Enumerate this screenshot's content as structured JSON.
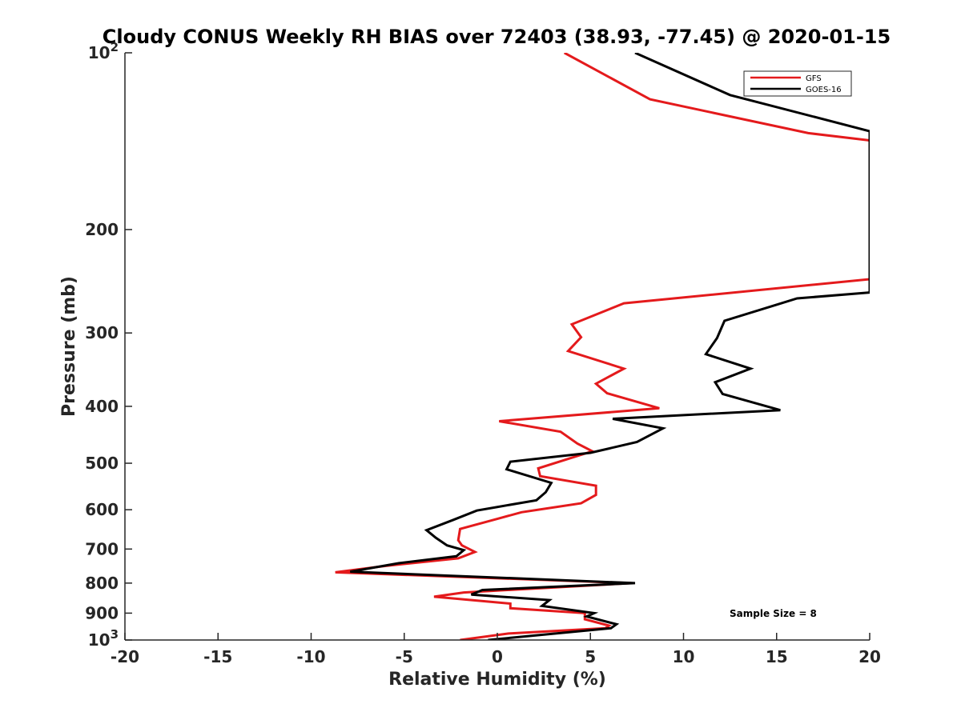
{
  "chart_data": {
    "type": "line",
    "title": "Cloudy CONUS Weekly RH BIAS over 72403 (38.93, -77.45) @ 2020-01-15",
    "xlabel": "Relative Humidity (%)",
    "ylabel": "Pressure (mb)",
    "xlim": [
      -20,
      20
    ],
    "ylim": [
      100,
      1000
    ],
    "y_scale": "log",
    "y_reversed": true,
    "grid": false,
    "legend_position": "top-right",
    "x_ticks": [
      "-20",
      "-15",
      "-10",
      "-5",
      "0",
      "5",
      "10",
      "15",
      "20"
    ],
    "y_ticks": [
      {
        "value": 100,
        "base": "10",
        "exp": "2"
      },
      {
        "value": 200,
        "label": "200"
      },
      {
        "value": 300,
        "label": "300"
      },
      {
        "value": 400,
        "label": "400"
      },
      {
        "value": 500,
        "label": "500"
      },
      {
        "value": 600,
        "label": "600"
      },
      {
        "value": 700,
        "label": "700"
      },
      {
        "value": 800,
        "label": "800"
      },
      {
        "value": 900,
        "label": "900"
      },
      {
        "value": 1000,
        "base": "10",
        "exp": "3"
      }
    ],
    "series": [
      {
        "name": "GFS",
        "color": "#e41a1c",
        "points": [
          [
            3.6,
            100
          ],
          [
            8.2,
            120
          ],
          [
            16.7,
            137
          ],
          [
            20.0,
            141
          ],
          [
            20.0,
            243
          ],
          [
            6.8,
            267
          ],
          [
            4.0,
            290
          ],
          [
            4.5,
            305
          ],
          [
            3.8,
            322
          ],
          [
            6.8,
            345
          ],
          [
            5.3,
            366
          ],
          [
            5.9,
            380
          ],
          [
            8.7,
            403
          ],
          [
            0.1,
            424
          ],
          [
            3.4,
            442
          ],
          [
            4.3,
            463
          ],
          [
            5.1,
            477
          ],
          [
            2.2,
            510
          ],
          [
            2.3,
            526
          ],
          [
            5.3,
            546
          ],
          [
            5.3,
            566
          ],
          [
            4.5,
            585
          ],
          [
            1.3,
            606
          ],
          [
            0.0,
            622
          ],
          [
            -2.0,
            647
          ],
          [
            -2.1,
            676
          ],
          [
            -1.9,
            690
          ],
          [
            -1.2,
            708
          ],
          [
            -2.1,
            726
          ],
          [
            -6.0,
            748
          ],
          [
            -8.7,
            767
          ],
          [
            7.2,
            800
          ],
          [
            -1.8,
            830
          ],
          [
            -3.4,
            844
          ],
          [
            0.7,
            867
          ],
          [
            0.7,
            883
          ],
          [
            4.7,
            900
          ],
          [
            4.7,
            922
          ],
          [
            6.0,
            945
          ],
          [
            5.8,
            955
          ],
          [
            0.6,
            975
          ],
          [
            -2.0,
            1000
          ]
        ]
      },
      {
        "name": "GOES-16",
        "color": "#000000",
        "points": [
          [
            7.4,
            100
          ],
          [
            12.5,
            118
          ],
          [
            20.0,
            136
          ],
          [
            20.0,
            256
          ],
          [
            16.1,
            262
          ],
          [
            12.2,
            286
          ],
          [
            11.8,
            306
          ],
          [
            11.2,
            326
          ],
          [
            13.6,
            345
          ],
          [
            11.7,
            364
          ],
          [
            12.1,
            381
          ],
          [
            15.2,
            406
          ],
          [
            6.2,
            420
          ],
          [
            8.9,
            436
          ],
          [
            7.5,
            460
          ],
          [
            5.0,
            480
          ],
          [
            0.7,
            497
          ],
          [
            0.5,
            512
          ],
          [
            2.9,
            540
          ],
          [
            2.6,
            560
          ],
          [
            2.1,
            578
          ],
          [
            -1.1,
            602
          ],
          [
            -2.4,
            625
          ],
          [
            -3.8,
            650
          ],
          [
            -3.3,
            670
          ],
          [
            -2.7,
            690
          ],
          [
            -1.8,
            703
          ],
          [
            -2.2,
            720
          ],
          [
            -5.3,
            740
          ],
          [
            -7.9,
            765
          ],
          [
            7.4,
            800
          ],
          [
            -0.8,
            822
          ],
          [
            -1.4,
            837
          ],
          [
            2.8,
            855
          ],
          [
            2.4,
            875
          ],
          [
            5.2,
            900
          ],
          [
            4.8,
            912
          ],
          [
            6.4,
            940
          ],
          [
            6.1,
            955
          ],
          [
            -0.5,
            1000
          ]
        ]
      }
    ],
    "annotation": "Sample Size = 8"
  }
}
